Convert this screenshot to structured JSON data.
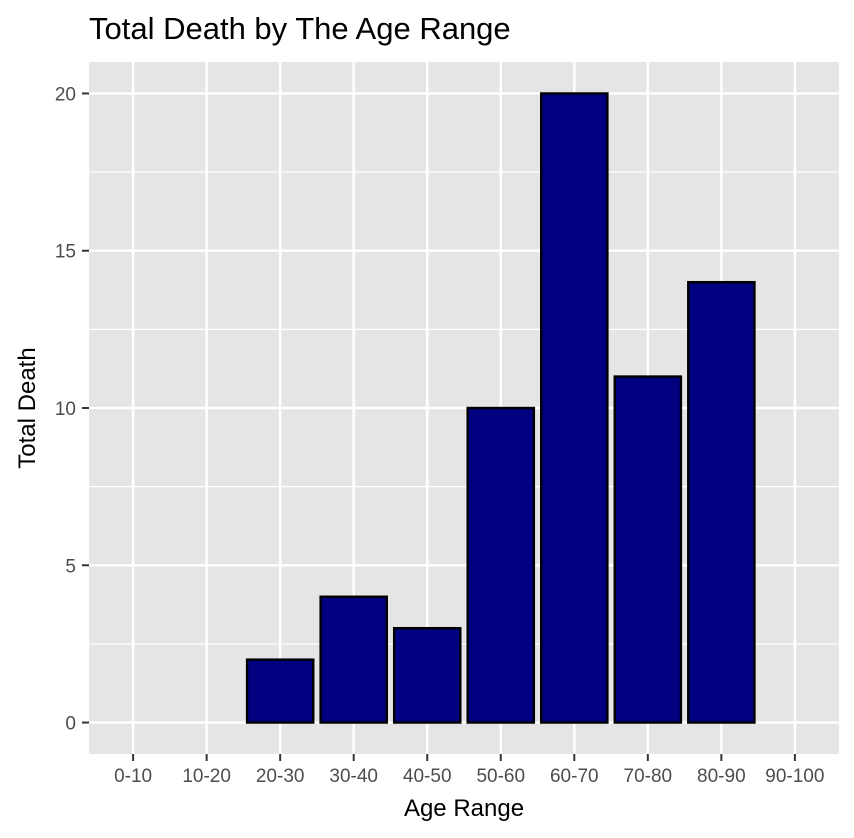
{
  "chart_data": {
    "type": "bar",
    "title": "Total Death by The Age Range",
    "xlabel": "Age Range",
    "ylabel": "Total Death",
    "categories": [
      "0-10",
      "10-20",
      "20-30",
      "30-40",
      "40-50",
      "50-60",
      "60-70",
      "70-80",
      "80-90",
      "90-100"
    ],
    "values": [
      0,
      0,
      2,
      4,
      3,
      10,
      20,
      11,
      14,
      0
    ],
    "ylim": [
      -1,
      21
    ],
    "yticks": [
      0,
      5,
      10,
      15,
      20
    ],
    "grid": true,
    "legend": "none",
    "colors": {
      "bar_fill": "#000080",
      "bar_outline": "#000000",
      "panel_background": "#e5e5e5",
      "grid": "#ffffff"
    }
  }
}
